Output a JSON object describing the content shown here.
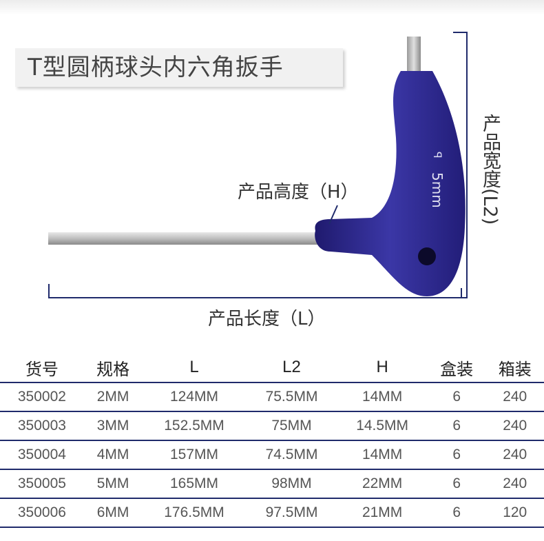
{
  "title": "T型圆柄球头内六角扳手",
  "labels": {
    "height": "产品高度（H）",
    "length": "产品长度（L）",
    "width": "产品宽度(L2)",
    "handle_mark": "5mm"
  },
  "colors": {
    "handle": "#2e2a8c",
    "dimension_line": "#1f2a6b"
  },
  "table": {
    "headers": [
      "货号",
      "规格",
      "L",
      "L2",
      "H",
      "盒装",
      "箱装"
    ],
    "rows": [
      [
        "350002",
        "2MM",
        "124MM",
        "75.5MM",
        "14MM",
        "6",
        "240"
      ],
      [
        "350003",
        "3MM",
        "152.5MM",
        "75MM",
        "14.5MM",
        "6",
        "240"
      ],
      [
        "350004",
        "4MM",
        "157MM",
        "74.5MM",
        "14MM",
        "6",
        "240"
      ],
      [
        "350005",
        "5MM",
        "165MM",
        "98MM",
        "22MM",
        "6",
        "240"
      ],
      [
        "350006",
        "6MM",
        "176.5MM",
        "97.5MM",
        "21MM",
        "6",
        "120"
      ]
    ]
  }
}
